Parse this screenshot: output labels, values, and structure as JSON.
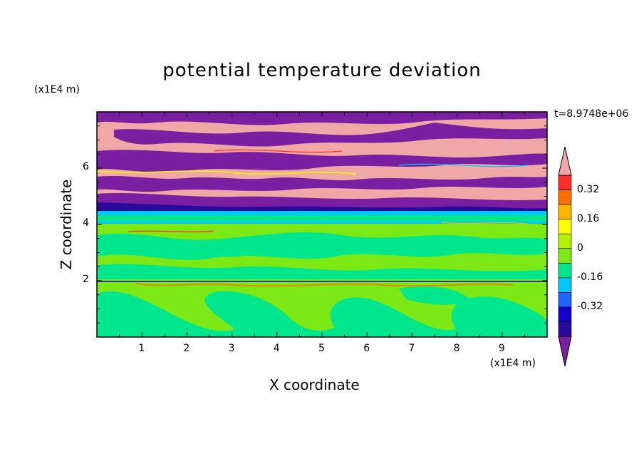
{
  "chart_data": {
    "type": "heatmap",
    "title": "potential temperature deviation",
    "xlabel": "X coordinate",
    "ylabel": "Z coordinate",
    "x_unit": "(x1E4 m)",
    "y_unit": "(x1E4 m)",
    "timestamp": "t=8.9748e+06",
    "xlim": [
      0,
      10
    ],
    "ylim": [
      0,
      8
    ],
    "x_ticks": [
      "1",
      "2",
      "3",
      "4",
      "5",
      "6",
      "7",
      "8",
      "9"
    ],
    "y_ticks": [
      "2",
      "4",
      "6"
    ],
    "colorbar": {
      "levels": [
        -0.48,
        -0.4,
        -0.32,
        -0.24,
        -0.16,
        -0.08,
        0,
        0.08,
        0.16,
        0.24,
        0.32,
        0.4,
        0.48
      ],
      "labels": [
        "0.32",
        "0.16",
        "0",
        "-0.16",
        "-0.32"
      ],
      "colors": [
        "#7a1fa2",
        "#2a0a9a",
        "#1400c8",
        "#1e64ff",
        "#00c8ff",
        "#00e68c",
        "#7ce814",
        "#b4f000",
        "#ffff00",
        "#ffb400",
        "#ff7000",
        "#ff2d2d",
        "#f2a7a7"
      ],
      "extend": "both"
    },
    "layers": [
      {
        "z_range": [
          0,
          2.0
        ],
        "dominant": "#7ce814",
        "secondary": "#00e68c"
      },
      {
        "z_range": [
          2.0,
          4.0
        ],
        "dominant": "#7ce814",
        "secondary": "#00e68c"
      },
      {
        "z_range": [
          4.0,
          4.5
        ],
        "dominant": "#00e68c",
        "secondary": "#00c8ff"
      },
      {
        "z_range": [
          4.5,
          8.0
        ],
        "dominant": "#7a1fa2",
        "secondary": "#f2a7a7"
      }
    ]
  }
}
